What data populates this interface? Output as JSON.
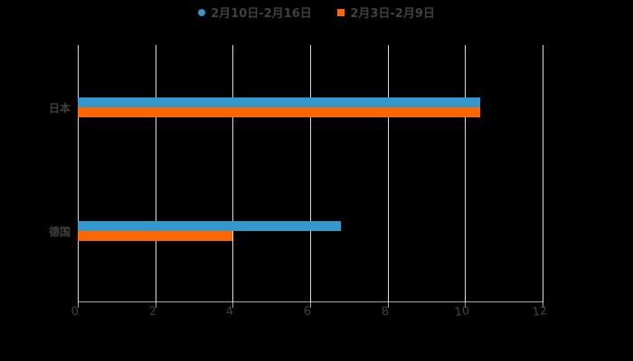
{
  "chart_data": {
    "type": "bar",
    "orientation": "horizontal",
    "title": "",
    "categories": [
      "日本",
      "德国"
    ],
    "series": [
      {
        "name": "2月10日-2月16日",
        "color": "#3399cc",
        "values": [
          10.4,
          6.8
        ]
      },
      {
        "name": "2月3日-2月9日",
        "color": "#ff6600",
        "values": [
          10.4,
          4.0
        ]
      }
    ],
    "xlabel": "",
    "ylabel": "",
    "xlim": [
      0,
      12
    ],
    "xticks": [
      "0",
      "2",
      "4",
      "6",
      "8",
      "10",
      "12"
    ],
    "grid": true,
    "legend_position": "top"
  },
  "legend": {
    "items": [
      {
        "label": "2月10日-2月16日",
        "color": "#3399cc",
        "shape": "circle"
      },
      {
        "label": "2月3日-2月9日",
        "color": "#ff6600",
        "shape": "square"
      }
    ]
  }
}
